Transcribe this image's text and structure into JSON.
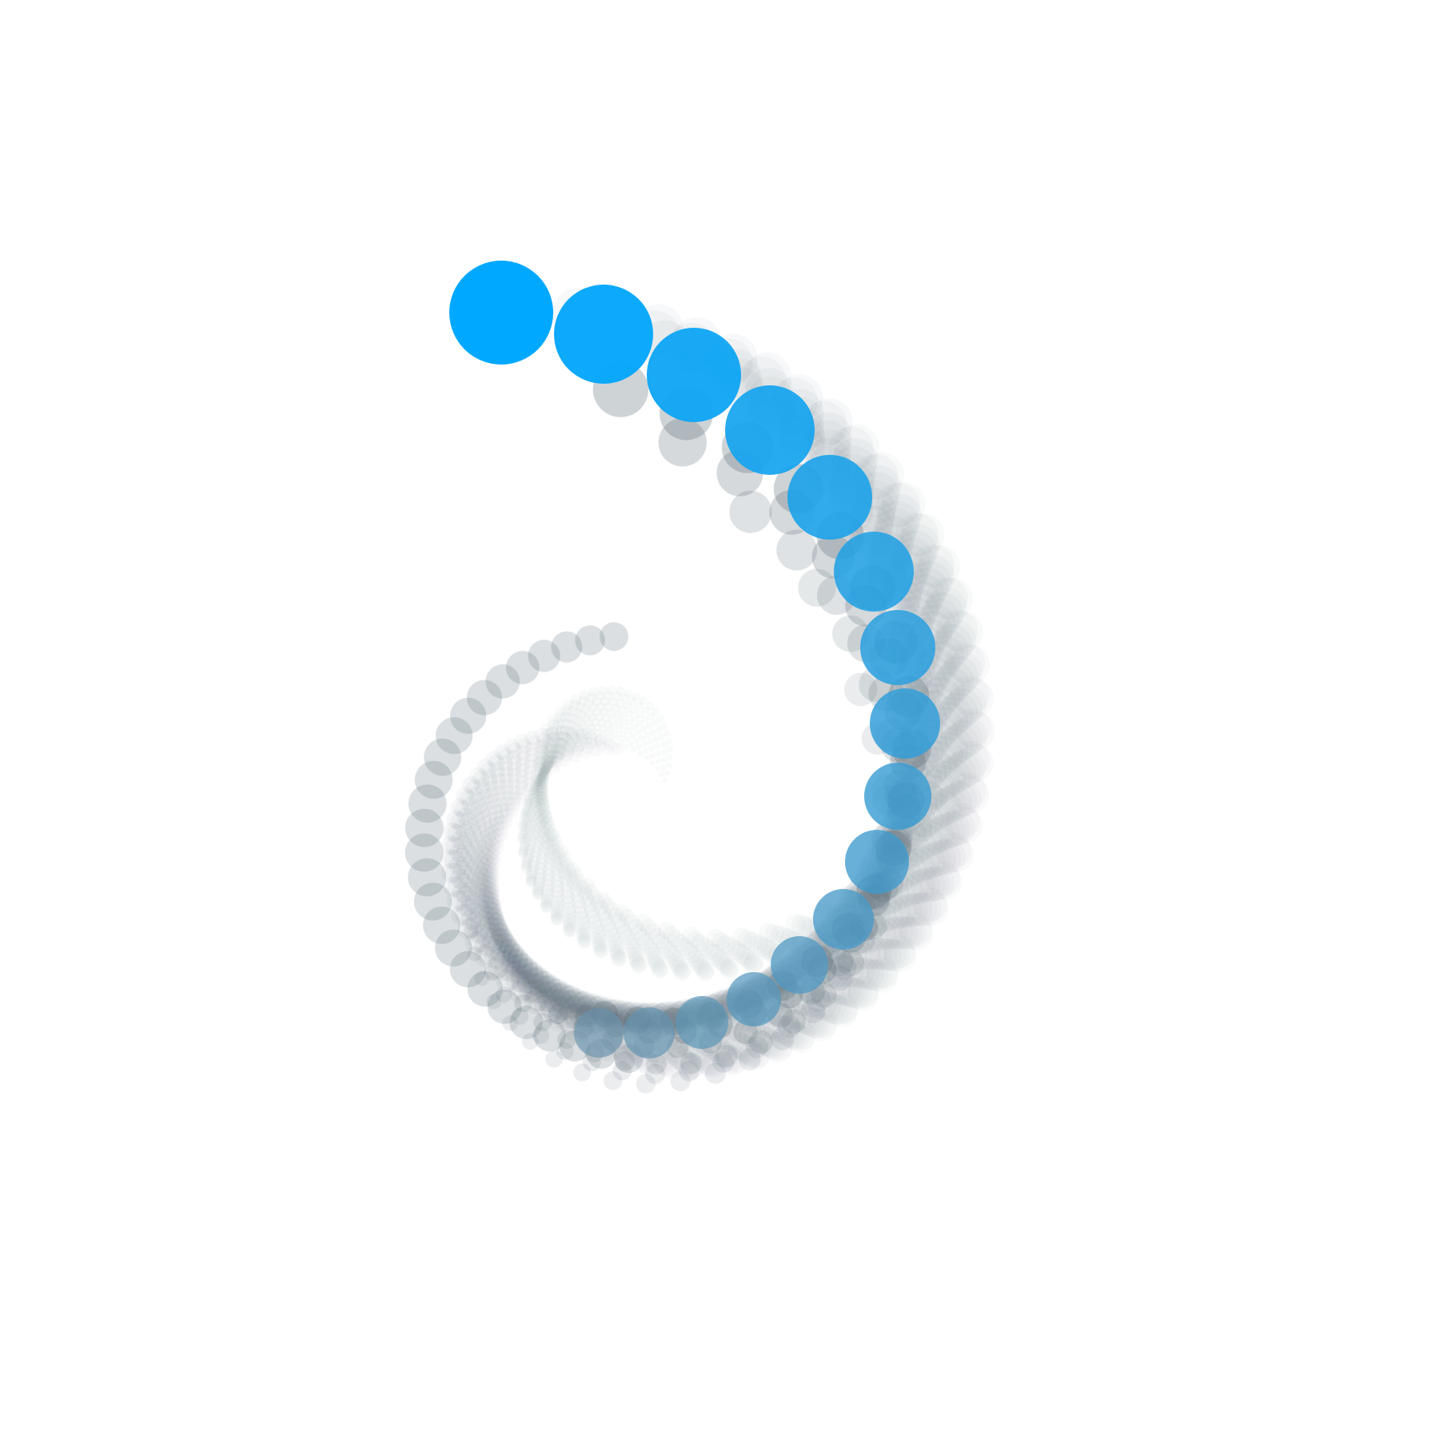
{
  "artwork": {
    "subject": "spiral-shell-of-circles",
    "background_color": "#ffffff",
    "accent_color": "#00a8ff",
    "accent_color_end": "#6a93ad",
    "trail_color": "#5d6e78",
    "highlight_trail_circle_count": 16,
    "ghost_trail_count": 8
  }
}
